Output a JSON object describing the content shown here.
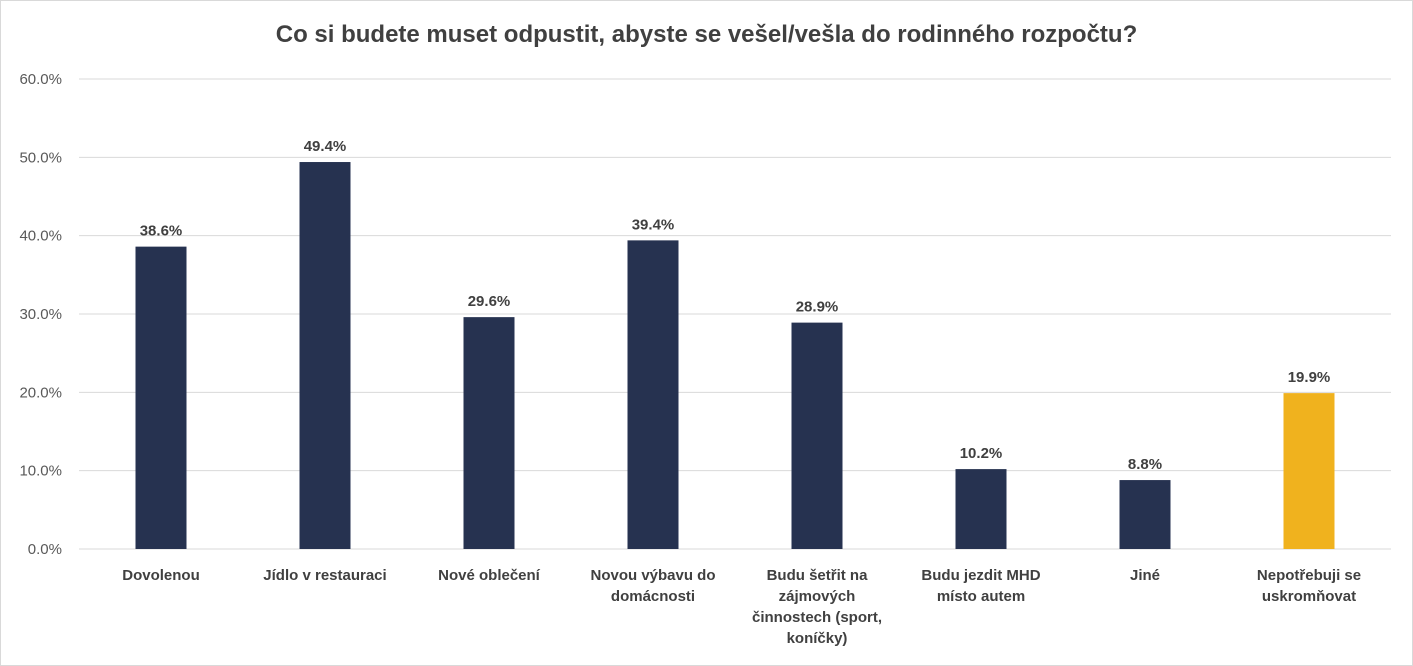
{
  "chart_data": {
    "type": "bar",
    "title": "Co si budete muset odpustit, abyste se vešel/vešla do rodinného rozpočtu?",
    "xlabel": "",
    "ylabel": "",
    "ylim": [
      0,
      60
    ],
    "y_ticks": [
      "0.0%",
      "10.0%",
      "20.0%",
      "30.0%",
      "40.0%",
      "50.0%",
      "60.0%"
    ],
    "grid": true,
    "categories": [
      [
        "Dovolenou"
      ],
      [
        "Jídlo v restauraci"
      ],
      [
        "Nové oblečení"
      ],
      [
        "Novou výbavu do",
        "domácnosti"
      ],
      [
        "Budu šetřit na",
        "zájmových",
        "činnostech (sport,",
        "koníčky)"
      ],
      [
        "Budu jezdit MHD",
        "místo autem"
      ],
      [
        "Jiné"
      ],
      [
        "Nepotřebuji se",
        "uskromňovat"
      ]
    ],
    "values": [
      38.6,
      49.4,
      29.6,
      39.4,
      28.9,
      10.2,
      8.8,
      19.9
    ],
    "value_labels": [
      "38.6%",
      "49.4%",
      "29.6%",
      "39.4%",
      "28.9%",
      "10.2%",
      "8.8%",
      "19.9%"
    ],
    "colors": [
      "#263250",
      "#263250",
      "#263250",
      "#263250",
      "#263250",
      "#263250",
      "#263250",
      "#F0B21E"
    ]
  }
}
